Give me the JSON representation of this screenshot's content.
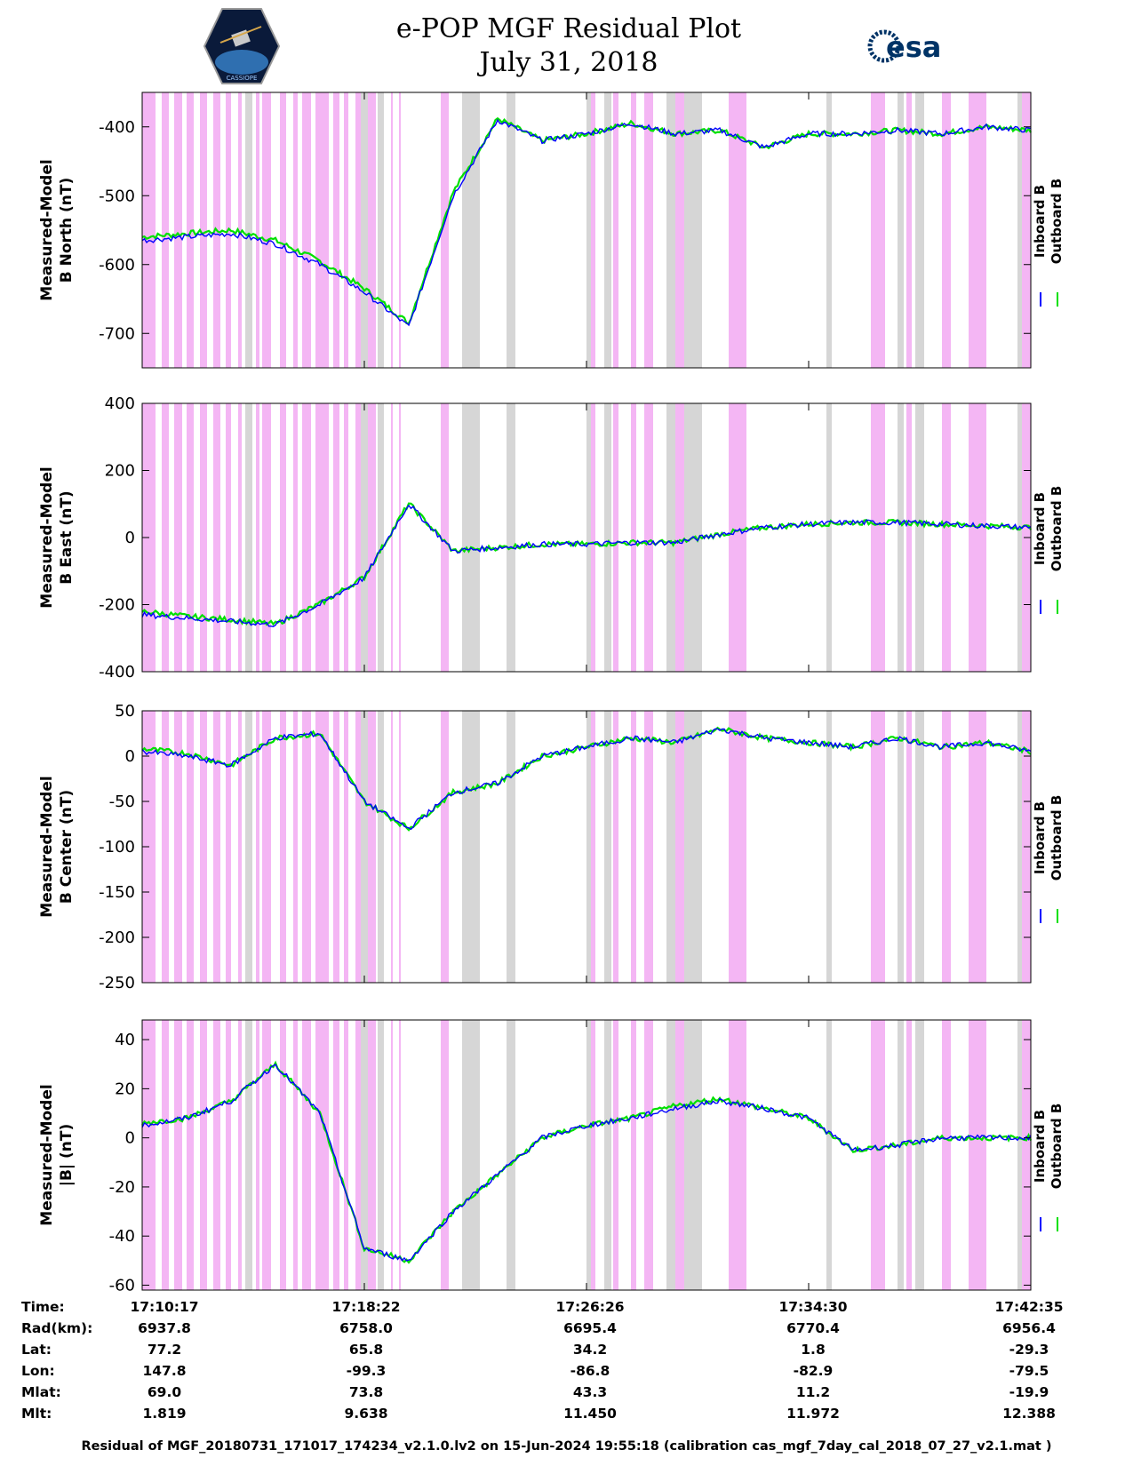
{
  "header": {
    "title_line1": "e-POP MGF Residual Plot",
    "title_line2": "July 31, 2018",
    "mission_logo_text": "CASSIOPE",
    "esa_logo_text": "esa"
  },
  "colors": {
    "inboard": "#0000ff",
    "outboard": "#00e000",
    "pink_band": "#f4b6f4",
    "gray_band": "#d6d6d6"
  },
  "legend": {
    "inboard_label": "Inboard B",
    "outboard_label": "Outboard B"
  },
  "chart_data": [
    {
      "type": "line",
      "ylabel_line1": "Measured-Model",
      "ylabel_line2": "B North (nT)",
      "ylim": [
        -750,
        -350
      ],
      "yticks": [
        -400,
        -500,
        -600,
        -700
      ],
      "series": [
        {
          "name": "Inboard B",
          "x": [
            0,
            0.05,
            0.1,
            0.15,
            0.2,
            0.25,
            0.3,
            0.35,
            0.4,
            0.45,
            0.5,
            0.55,
            0.6,
            0.65,
            0.7,
            0.75,
            0.8,
            0.85,
            0.9,
            0.95,
            1.0
          ],
          "values": [
            -565,
            -560,
            -555,
            -570,
            -600,
            -640,
            -690,
            -500,
            -390,
            -420,
            -410,
            -395,
            -410,
            -405,
            -430,
            -410,
            -410,
            -405,
            -410,
            -400,
            -405
          ]
        },
        {
          "name": "Outboard B",
          "x": [
            0,
            0.05,
            0.1,
            0.15,
            0.2,
            0.25,
            0.3,
            0.35,
            0.4,
            0.45,
            0.5,
            0.55,
            0.6,
            0.65,
            0.7,
            0.75,
            0.8,
            0.85,
            0.9,
            0.95,
            1.0
          ],
          "values": [
            -560,
            -555,
            -550,
            -565,
            -595,
            -635,
            -685,
            -495,
            -388,
            -420,
            -410,
            -395,
            -410,
            -405,
            -430,
            -410,
            -410,
            -405,
            -410,
            -400,
            -405
          ]
        }
      ]
    },
    {
      "type": "line",
      "ylabel_line1": "Measured-Model",
      "ylabel_line2": "B East (nT)",
      "ylim": [
        -400,
        400
      ],
      "yticks": [
        400,
        200,
        0,
        -200,
        -400
      ],
      "series": [
        {
          "name": "Inboard B",
          "x": [
            0,
            0.05,
            0.1,
            0.15,
            0.2,
            0.25,
            0.3,
            0.35,
            0.4,
            0.45,
            0.5,
            0.55,
            0.6,
            0.65,
            0.7,
            0.75,
            0.8,
            0.85,
            0.9,
            0.95,
            1.0
          ],
          "values": [
            -230,
            -240,
            -250,
            -260,
            -200,
            -120,
            100,
            -40,
            -30,
            -20,
            -20,
            -15,
            -15,
            10,
            30,
            40,
            45,
            45,
            40,
            35,
            30
          ]
        },
        {
          "name": "Outboard B",
          "x": [
            0,
            0.05,
            0.1,
            0.15,
            0.2,
            0.25,
            0.3,
            0.35,
            0.4,
            0.45,
            0.5,
            0.55,
            0.6,
            0.65,
            0.7,
            0.75,
            0.8,
            0.85,
            0.9,
            0.95,
            1.0
          ],
          "values": [
            -220,
            -235,
            -245,
            -258,
            -198,
            -118,
            102,
            -40,
            -30,
            -20,
            -20,
            -15,
            -15,
            10,
            30,
            40,
            45,
            45,
            40,
            35,
            30
          ]
        }
      ]
    },
    {
      "type": "line",
      "ylabel_line1": "Measured-Model",
      "ylabel_line2": "B Center (nT)",
      "ylim": [
        -250,
        50
      ],
      "yticks": [
        50,
        0,
        -50,
        -100,
        -150,
        -200,
        -250
      ],
      "series": [
        {
          "name": "Inboard B",
          "x": [
            0,
            0.05,
            0.1,
            0.15,
            0.2,
            0.25,
            0.3,
            0.35,
            0.4,
            0.45,
            0.5,
            0.55,
            0.6,
            0.65,
            0.7,
            0.75,
            0.8,
            0.85,
            0.9,
            0.95,
            1.0
          ],
          "values": [
            5,
            0,
            -10,
            20,
            25,
            -50,
            -80,
            -40,
            -30,
            0,
            10,
            20,
            15,
            30,
            20,
            15,
            10,
            20,
            10,
            15,
            5
          ]
        },
        {
          "name": "Outboard B",
          "x": [
            0,
            0.05,
            0.1,
            0.15,
            0.2,
            0.25,
            0.3,
            0.35,
            0.4,
            0.45,
            0.5,
            0.55,
            0.6,
            0.65,
            0.7,
            0.75,
            0.8,
            0.85,
            0.9,
            0.95,
            1.0
          ],
          "values": [
            8,
            3,
            -10,
            20,
            25,
            -50,
            -80,
            -40,
            -30,
            0,
            10,
            20,
            15,
            30,
            20,
            15,
            10,
            20,
            10,
            15,
            5
          ]
        }
      ]
    },
    {
      "type": "line",
      "ylabel_line1": "Measured-Model",
      "ylabel_line2": "|B| (nT)",
      "ylim": [
        -62,
        48
      ],
      "yticks": [
        40,
        20,
        0,
        -20,
        -40,
        -60
      ],
      "series": [
        {
          "name": "Inboard B",
          "x": [
            0,
            0.05,
            0.1,
            0.15,
            0.2,
            0.25,
            0.3,
            0.35,
            0.4,
            0.45,
            0.5,
            0.55,
            0.6,
            0.65,
            0.7,
            0.75,
            0.8,
            0.85,
            0.9,
            0.95,
            1.0
          ],
          "values": [
            5,
            8,
            15,
            30,
            10,
            -45,
            -50,
            -30,
            -15,
            0,
            5,
            8,
            12,
            15,
            12,
            8,
            -5,
            -3,
            0,
            0,
            0
          ]
        },
        {
          "name": "Outboard B",
          "x": [
            0,
            0.05,
            0.1,
            0.15,
            0.2,
            0.25,
            0.3,
            0.35,
            0.4,
            0.45,
            0.5,
            0.55,
            0.6,
            0.65,
            0.7,
            0.75,
            0.8,
            0.85,
            0.9,
            0.95,
            1.0
          ],
          "values": [
            6,
            8,
            15,
            30,
            10,
            -45,
            -50,
            -30,
            -15,
            0,
            5,
            8,
            13,
            16,
            12,
            8,
            -5,
            -3,
            0,
            0,
            0
          ]
        }
      ]
    }
  ],
  "shading": {
    "pink_intervals": [
      [
        0.0,
        0.015
      ],
      [
        0.022,
        0.03
      ],
      [
        0.036,
        0.045
      ],
      [
        0.05,
        0.058
      ],
      [
        0.065,
        0.073
      ],
      [
        0.08,
        0.088
      ],
      [
        0.094,
        0.1
      ],
      [
        0.108,
        0.112
      ],
      [
        0.128,
        0.132
      ],
      [
        0.135,
        0.145
      ],
      [
        0.155,
        0.162
      ],
      [
        0.17,
        0.175
      ],
      [
        0.18,
        0.19
      ],
      [
        0.195,
        0.21
      ],
      [
        0.215,
        0.222
      ],
      [
        0.227,
        0.232
      ],
      [
        0.24,
        0.248
      ],
      [
        0.254,
        0.26
      ],
      [
        0.26,
        0.263
      ],
      [
        0.28,
        0.282
      ],
      [
        0.289,
        0.291
      ],
      [
        0.336,
        0.345
      ],
      [
        0.5,
        0.51
      ],
      [
        0.53,
        0.536
      ],
      [
        0.55,
        0.556
      ],
      [
        0.565,
        0.575
      ],
      [
        0.6,
        0.61
      ],
      [
        0.66,
        0.68
      ],
      [
        0.82,
        0.836
      ],
      [
        0.86,
        0.866
      ],
      [
        0.9,
        0.91
      ],
      [
        0.93,
        0.95
      ],
      [
        0.99,
        1.0
      ]
    ],
    "gray_intervals": [
      [
        0.116,
        0.124
      ],
      [
        0.246,
        0.254
      ],
      [
        0.265,
        0.272
      ],
      [
        0.36,
        0.38
      ],
      [
        0.41,
        0.42
      ],
      [
        0.5,
        0.505
      ],
      [
        0.52,
        0.528
      ],
      [
        0.59,
        0.6
      ],
      [
        0.61,
        0.63
      ],
      [
        0.77,
        0.776
      ],
      [
        0.85,
        0.857
      ],
      [
        0.87,
        0.88
      ],
      [
        0.985,
        0.99
      ]
    ]
  },
  "xaxis": {
    "tick_labels": [
      "17:10:17",
      "17:18:22",
      "17:26:26",
      "17:34:30",
      "17:42:35"
    ]
  },
  "info_table": {
    "rows": [
      {
        "label": "Time:",
        "values": [
          "17:10:17",
          "17:18:22",
          "17:26:26",
          "17:34:30",
          "17:42:35"
        ]
      },
      {
        "label": "Rad(km):",
        "values": [
          "6937.8",
          "6758.0",
          "6695.4",
          "6770.4",
          "6956.4"
        ]
      },
      {
        "label": "Lat:",
        "values": [
          "77.2",
          "65.8",
          "34.2",
          "1.8",
          "-29.3"
        ]
      },
      {
        "label": "Lon:",
        "values": [
          "147.8",
          "-99.3",
          "-86.8",
          "-82.9",
          "-79.5"
        ]
      },
      {
        "label": "Mlat:",
        "values": [
          "69.0",
          "73.8",
          "43.3",
          "11.2",
          "-19.9"
        ]
      },
      {
        "label": "Mlt:",
        "values": [
          "1.819",
          "9.638",
          "11.450",
          "11.972",
          "12.388"
        ]
      }
    ]
  },
  "footer": {
    "text": "Residual of MGF_20180731_171017_174234_v2.1.0.lv2 on 15-Jun-2024 19:55:18 (calibration cas_mgf_7day_cal_2018_07_27_v2.1.mat )"
  }
}
